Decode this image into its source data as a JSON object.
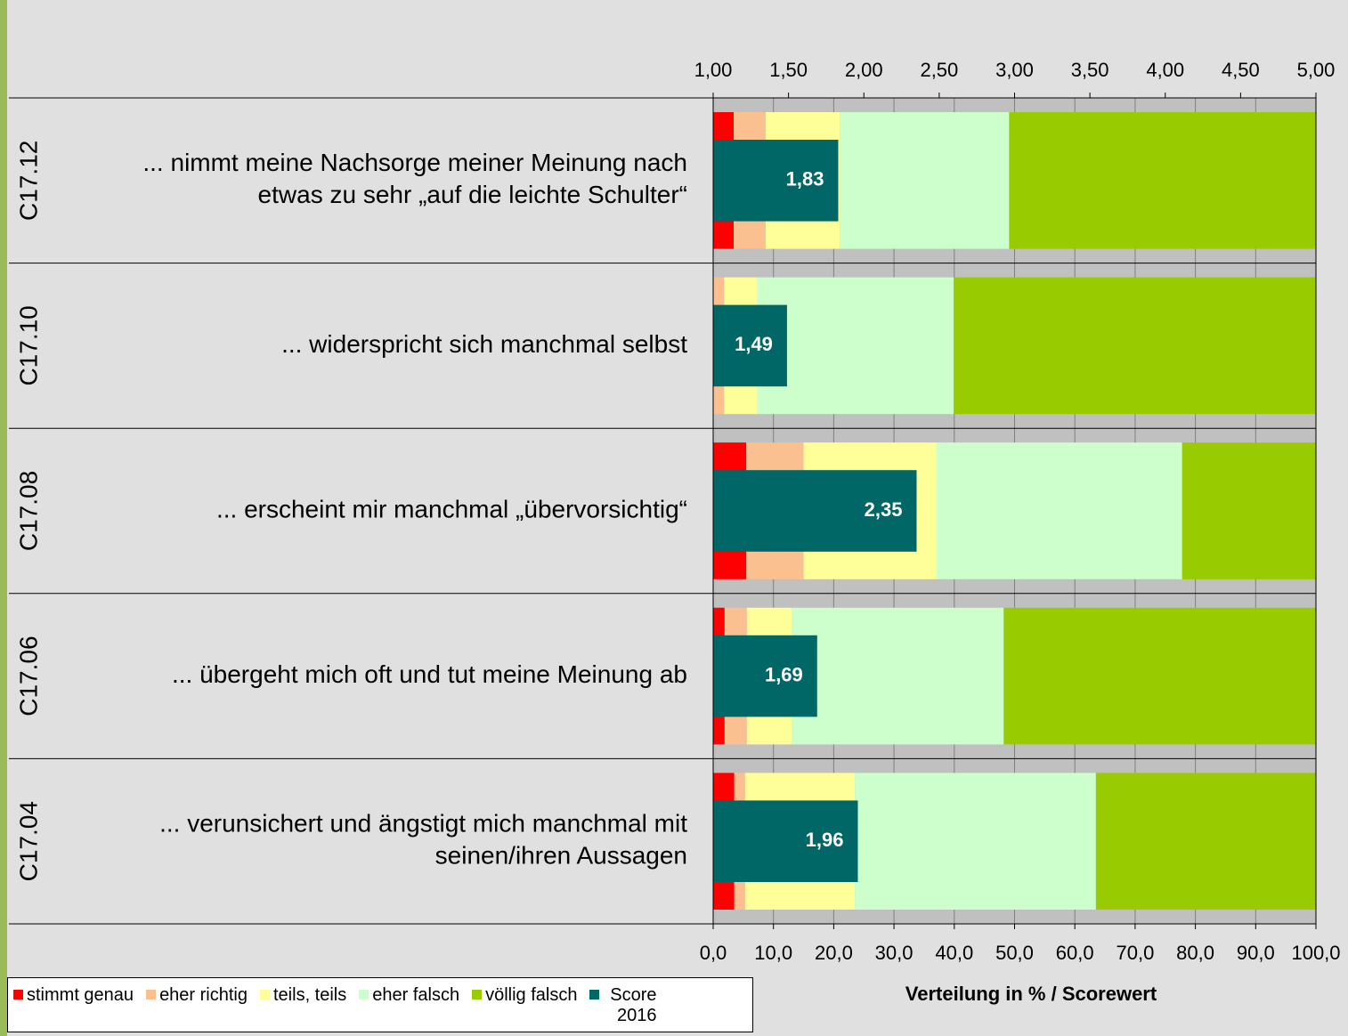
{
  "chart_data": {
    "type": "stacked-bar-horizontal",
    "codes": [
      "C17.12",
      "C17.10",
      "C17.08",
      "C17.06",
      "C17.04"
    ],
    "categories": [
      [
        "... nimmt meine Nachsorge meiner Meinung nach",
        "etwas zu sehr „auf die leichte Schulter“"
      ],
      [
        "... widerspricht sich manchmal selbst"
      ],
      [
        "... erscheint mir manchmal „übervorsichtig“"
      ],
      [
        "... übergeht mich oft und tut meine Meinung ab"
      ],
      [
        "... verunsichert und ängstigt mich manchmal mit",
        "seinen/ihren Aussagen"
      ]
    ],
    "series": [
      {
        "name": "stimmt genau",
        "color": "#ff0000",
        "values": [
          3.4,
          0,
          5.5,
          1.9,
          3.5
        ]
      },
      {
        "name": "eher richtig",
        "color": "#fac090",
        "values": [
          5.3,
          1.8,
          9.5,
          3.7,
          1.8
        ]
      },
      {
        "name": "teils, teils",
        "color": "#ffff99",
        "values": [
          12.3,
          5.5,
          22.0,
          7.4,
          18.2
        ]
      },
      {
        "name": "eher falsch",
        "color": "#ccffcc",
        "values": [
          28.1,
          32.6,
          40.8,
          35.2,
          40.0
        ]
      },
      {
        "name": "völlig falsch",
        "color": "#99cc00",
        "values": [
          50.9,
          60.1,
          22.2,
          51.8,
          36.5
        ]
      },
      {
        "name": "Score 2016",
        "color": "#006666",
        "axis": "x2",
        "values": [
          1.83,
          1.49,
          2.35,
          1.69,
          1.96
        ],
        "value_labels": [
          "1,83",
          "1,49",
          "2,35",
          "1,69",
          "1,96"
        ]
      }
    ],
    "xlim": [
      0,
      100
    ],
    "xticks": [
      {
        "value": 0,
        "label": "0,0"
      },
      {
        "value": 10,
        "label": "10,0"
      },
      {
        "value": 20,
        "label": "20,0"
      },
      {
        "value": 30,
        "label": "30,0"
      },
      {
        "value": 40,
        "label": "40,0"
      },
      {
        "value": 50,
        "label": "50,0"
      },
      {
        "value": 60,
        "label": "60,0"
      },
      {
        "value": 70,
        "label": "70,0"
      },
      {
        "value": 80,
        "label": "80,0"
      },
      {
        "value": 90,
        "label": "90,0"
      },
      {
        "value": 100,
        "label": "100,0"
      }
    ],
    "x2lim": [
      1,
      5
    ],
    "x2ticks": [
      {
        "value": 1,
        "label": "1,00"
      },
      {
        "value": 1.5,
        "label": "1,50"
      },
      {
        "value": 2,
        "label": "2,00"
      },
      {
        "value": 2.5,
        "label": "2,50"
      },
      {
        "value": 3,
        "label": "3,00"
      },
      {
        "value": 3.5,
        "label": "3,50"
      },
      {
        "value": 4,
        "label": "4,00"
      },
      {
        "value": 4.5,
        "label": "4,50"
      },
      {
        "value": 5,
        "label": "5,00"
      }
    ],
    "xlabel": "Verteilung in % / Scorewert",
    "grid": true
  }
}
